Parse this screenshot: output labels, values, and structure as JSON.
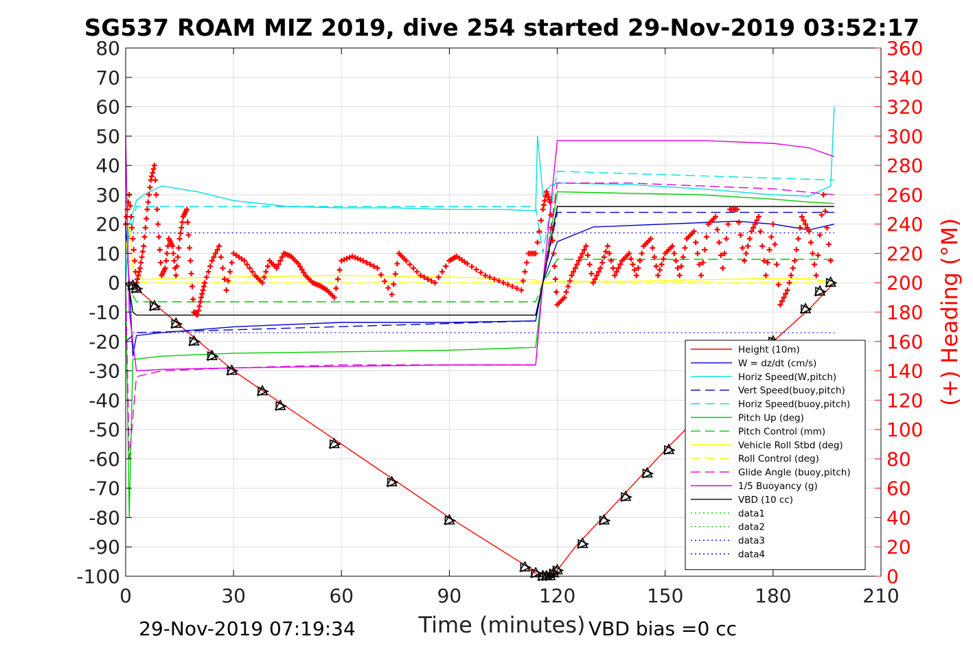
{
  "chart_data": {
    "type": "line",
    "title": "SG537 ROAM MIZ 2019, dive 254 started 29-Nov-2019 03:52:17",
    "xlabel": "Time (minutes)",
    "ylabel": "",
    "y2label": "(+) Heading (°M)",
    "xlim": [
      0,
      210
    ],
    "ylim": [
      -100,
      80
    ],
    "y2lim": [
      0,
      360
    ],
    "xticks": [
      "0",
      "30",
      "60",
      "90",
      "120",
      "150",
      "180",
      "210"
    ],
    "yticks": [
      "80",
      "70",
      "60",
      "50",
      "40",
      "30",
      "20",
      "10",
      "0",
      "-10",
      "-20",
      "-30",
      "-40",
      "-50",
      "-60",
      "-70",
      "-80",
      "-90",
      "-100"
    ],
    "y2ticks": [
      "360",
      "340",
      "320",
      "300",
      "280",
      "260",
      "240",
      "220",
      "200",
      "180",
      "160",
      "140",
      "120",
      "100",
      "80",
      "60",
      "40",
      "20",
      "0"
    ],
    "grid": true,
    "legend_position": "lower-right",
    "footer_left": "29-Nov-2019 07:19:34",
    "footer_right": "VBD bias =0 cc",
    "colors": {
      "red": "#ff0000",
      "blue": "#0000cc",
      "cyan": "#00e0e0",
      "green": "#00cc00",
      "yellow": "#ffff00",
      "magenta": "#dd00dd",
      "black": "#000000",
      "axis2": "#ff0000"
    },
    "series": [
      {
        "name": "Height (10m)",
        "color": "#ff0000",
        "dash": "solid",
        "x": [
          0,
          2,
          30,
          60,
          90,
          112,
          115,
          118,
          120,
          125,
          150,
          180,
          190,
          197
        ],
        "y": [
          0,
          -1,
          -30,
          -55,
          -80,
          -97,
          -100,
          -100,
          -98,
          -90,
          -57,
          -20,
          -9,
          0
        ]
      },
      {
        "name": "W = dz/dt (cm/s)",
        "color": "#0000cc",
        "dash": "solid",
        "x": [
          0,
          1,
          2,
          3,
          10,
          30,
          60,
          90,
          114,
          116,
          120,
          130,
          150,
          170,
          180,
          190,
          197
        ],
        "y": [
          20,
          0,
          -25,
          -18,
          -17,
          -15,
          -13.5,
          -13.5,
          -13,
          0,
          14,
          19,
          20,
          21,
          20,
          18,
          20
        ]
      },
      {
        "name": "Horiz Speed(W,pitch)",
        "color": "#00e0e0",
        "dash": "solid",
        "x": [
          0,
          1,
          3,
          5,
          10,
          20,
          30,
          45,
          60,
          75,
          90,
          105,
          114,
          114.5,
          116,
          118,
          120,
          140,
          160,
          180,
          190,
          196,
          197
        ],
        "y": [
          0,
          20,
          28,
          30,
          33,
          31,
          28,
          26,
          25.5,
          25.5,
          25,
          25,
          24.5,
          50,
          30,
          33,
          34,
          33.5,
          32,
          30,
          29.5,
          33,
          60
        ]
      },
      {
        "name": "Vert Speed(buoy,pitch)",
        "color": "#0000cc",
        "dash": "dashed",
        "x": [
          0,
          3,
          114,
          116,
          120,
          197
        ],
        "y": [
          -20,
          -17,
          -13,
          0,
          24,
          24
        ]
      },
      {
        "name": "Horiz Speed(buoy,pitch)",
        "color": "#00e0e0",
        "dash": "dashed",
        "x": [
          0,
          3,
          114,
          116,
          120,
          197
        ],
        "y": [
          10,
          26,
          26,
          10,
          38,
          35
        ]
      },
      {
        "name": "Pitch Up (deg)",
        "color": "#00cc00",
        "dash": "solid",
        "x": [
          0,
          1,
          2,
          3,
          10,
          30,
          60,
          90,
          114,
          116,
          120,
          140,
          160,
          180,
          190,
          197
        ],
        "y": [
          0,
          -80,
          -26,
          -26,
          -25,
          -24,
          -23.5,
          -23,
          -22,
          0,
          31,
          30.5,
          30,
          28.5,
          27.5,
          27
        ]
      },
      {
        "name": "Pitch Control (mm)",
        "color": "#00cc00",
        "dash": "dashed",
        "x": [
          0,
          3,
          114,
          116,
          120,
          197
        ],
        "y": [
          0,
          -6.5,
          -6.5,
          0,
          8,
          8
        ]
      },
      {
        "name": "Vehicle Roll Stbd (deg)",
        "color": "#ffff00",
        "dash": "solid",
        "x": [
          0,
          1,
          2,
          5,
          10,
          30,
          60,
          90,
          114,
          116,
          120,
          140,
          160,
          180,
          190,
          197
        ],
        "y": [
          10,
          20,
          5,
          1,
          1.5,
          2,
          2.5,
          2,
          1,
          0,
          0.5,
          0.5,
          1,
          1.5,
          1.5,
          0
        ]
      },
      {
        "name": "Roll Control (deg)",
        "color": "#ffff00",
        "dash": "dashed",
        "x": [
          0,
          3,
          197
        ],
        "y": [
          0,
          0,
          0
        ]
      },
      {
        "name": "Glide Angle (buoy,pitch)",
        "color": "#dd00dd",
        "dash": "dashed",
        "x": [
          0,
          1,
          3,
          10,
          30,
          60,
          90,
          114,
          116,
          120,
          140,
          160,
          180,
          197
        ],
        "y": [
          0,
          -60,
          -32,
          -30,
          -29,
          -28,
          -28,
          -28,
          0,
          34,
          34,
          33,
          32,
          30
        ]
      },
      {
        "name": "1/5 Buoyancy (g)",
        "color": "#dd00dd",
        "dash": "solid",
        "x": [
          0,
          1,
          3,
          10,
          30,
          60,
          90,
          114,
          116,
          120,
          140,
          160,
          180,
          190,
          197
        ],
        "y": [
          50,
          -10,
          -30,
          -29.5,
          -29,
          -28.5,
          -28,
          -28,
          0,
          48.5,
          48.5,
          48.5,
          47.5,
          46,
          43
        ]
      },
      {
        "name": "VBD (10 cc)",
        "color": "#000000",
        "dash": "solid",
        "x": [
          0,
          1,
          2,
          3,
          114,
          116,
          120,
          197
        ],
        "y": [
          0,
          -2,
          -10,
          -11,
          -11,
          0,
          26,
          26
        ]
      },
      {
        "name": "data1",
        "color": "#00cc00",
        "dash": "dotted",
        "x": [],
        "y": []
      },
      {
        "name": "data2",
        "color": "#00cc00",
        "dash": "dotted",
        "x": [],
        "y": []
      },
      {
        "name": "data3",
        "color": "#0000cc",
        "dash": "dotted",
        "x": [],
        "y": []
      },
      {
        "name": "data4",
        "color": "#0000cc",
        "dash": "dotted",
        "x": [],
        "y": []
      }
    ],
    "reference_lines": [
      {
        "y": 17,
        "color": "#0000cc",
        "dash": "dotted"
      },
      {
        "y": -17,
        "color": "#0000cc",
        "dash": "dotted"
      }
    ],
    "heading": {
      "axis": "right",
      "color": "#ff0000",
      "marker": "+",
      "x": [
        0,
        1,
        2,
        3,
        4,
        5,
        6,
        7,
        8,
        9,
        10,
        11,
        12,
        13,
        14,
        15,
        16,
        17,
        18,
        19,
        20,
        21,
        22,
        24,
        26,
        28,
        30,
        33,
        36,
        38,
        40,
        42,
        44,
        46,
        48,
        50,
        52,
        54,
        56,
        58,
        60,
        63,
        66,
        70,
        74,
        76,
        78,
        82,
        86,
        90,
        92,
        95,
        100,
        105,
        110,
        112,
        114,
        116,
        117,
        118,
        119,
        120,
        122,
        124,
        126,
        128,
        130,
        132,
        134,
        136,
        138,
        140,
        142,
        144,
        146,
        148,
        150,
        152,
        154,
        156,
        158,
        160,
        162,
        164,
        166,
        168,
        170,
        172,
        174,
        176,
        178,
        180,
        182,
        184,
        186,
        188,
        190,
        192,
        194,
        196
      ],
      "y": [
        240,
        260,
        230,
        200,
        210,
        225,
        250,
        270,
        280,
        240,
        205,
        210,
        230,
        225,
        205,
        230,
        245,
        250,
        215,
        180,
        178,
        190,
        200,
        215,
        225,
        195,
        220,
        215,
        205,
        200,
        215,
        210,
        220,
        218,
        213,
        205,
        200,
        198,
        195,
        190,
        215,
        218,
        215,
        210,
        192,
        220,
        215,
        205,
        200,
        215,
        218,
        213,
        205,
        200,
        195,
        220,
        220,
        250,
        262,
        255,
        220,
        185,
        190,
        205,
        215,
        225,
        200,
        210,
        225,
        205,
        215,
        220,
        205,
        225,
        230,
        205,
        220,
        225,
        205,
        230,
        235,
        205,
        240,
        245,
        210,
        250,
        250,
        215,
        235,
        245,
        205,
        240,
        185,
        195,
        215,
        245,
        235,
        205,
        260,
        215
      ]
    },
    "markers": {
      "color": "#000000",
      "x": [
        2,
        3,
        8,
        14,
        19,
        24,
        29.5,
        38,
        43,
        58,
        74,
        90,
        111,
        114,
        116,
        117,
        118,
        119,
        120,
        127,
        133,
        139,
        145,
        151,
        157,
        180,
        189,
        193,
        196
      ],
      "y": [
        -1,
        -2,
        -8,
        -14,
        -20,
        -25,
        -30,
        -37,
        -42,
        -55,
        -68,
        -81,
        -97,
        -99,
        -100,
        -100,
        -100,
        -99,
        -98,
        -89,
        -81,
        -73,
        -65,
        -57,
        -49,
        -20,
        -9,
        -3,
        0
      ]
    }
  }
}
